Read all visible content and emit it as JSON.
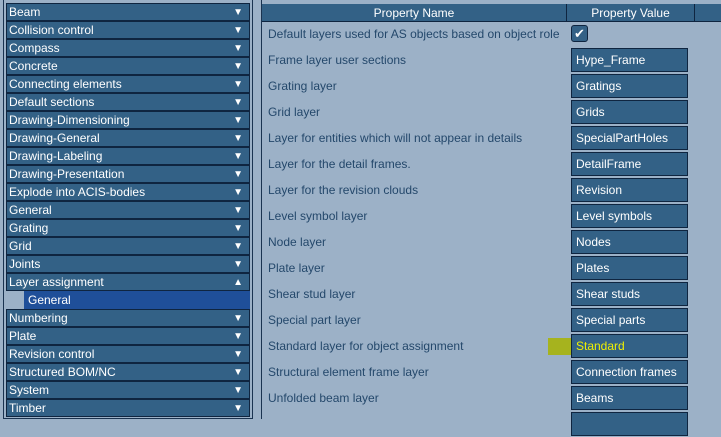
{
  "categories": [
    {
      "label": "Beam",
      "expanded": false
    },
    {
      "label": "Collision control",
      "expanded": false
    },
    {
      "label": "Compass",
      "expanded": false
    },
    {
      "label": "Concrete",
      "expanded": false
    },
    {
      "label": "Connecting elements",
      "expanded": false
    },
    {
      "label": "Default sections",
      "expanded": false
    },
    {
      "label": "Drawing-Dimensioning",
      "expanded": false
    },
    {
      "label": "Drawing-General",
      "expanded": false
    },
    {
      "label": "Drawing-Labeling",
      "expanded": false
    },
    {
      "label": "Drawing-Presentation",
      "expanded": false
    },
    {
      "label": "Explode into ACIS-bodies",
      "expanded": false
    },
    {
      "label": "General",
      "expanded": false
    },
    {
      "label": "Grating",
      "expanded": false
    },
    {
      "label": "Grid",
      "expanded": false
    },
    {
      "label": "Joints",
      "expanded": false
    },
    {
      "label": "Layer assignment",
      "expanded": true,
      "children": [
        "General"
      ]
    },
    {
      "label": "Numbering",
      "expanded": false
    },
    {
      "label": "Plate",
      "expanded": false
    },
    {
      "label": "Revision control",
      "expanded": false
    },
    {
      "label": "Structured BOM/NC",
      "expanded": false
    },
    {
      "label": "System",
      "expanded": false
    },
    {
      "label": "Timber",
      "expanded": false
    }
  ],
  "icons": {
    "collapsed": "▼",
    "expanded": "▲",
    "check": "✔"
  },
  "table": {
    "headers": [
      "Property Name",
      "Property Value"
    ],
    "rows": [
      {
        "name": "Default layers used for AS objects based on object role",
        "checked": true
      },
      {
        "name": "Frame layer user sections",
        "value": "Hype_Frame"
      },
      {
        "name": "Grating layer",
        "value": "Gratings"
      },
      {
        "name": "Grid layer",
        "value": "Grids"
      },
      {
        "name": "Layer for entities which will not appear in details",
        "value": "SpecialPartHoles"
      },
      {
        "name": "Layer for the detail frames.",
        "value": "DetailFrame"
      },
      {
        "name": "Layer for the revision clouds",
        "value": "Revision"
      },
      {
        "name": "Level symbol layer",
        "value": "Level symbols"
      },
      {
        "name": "Node layer",
        "value": "Nodes"
      },
      {
        "name": "Plate layer",
        "value": "Plates"
      },
      {
        "name": "Shear stud layer",
        "value": "Shear studs"
      },
      {
        "name": "Special part layer",
        "value": "Special parts"
      },
      {
        "name": "Standard layer for object assignment",
        "value": "Standard",
        "highlighted": true
      },
      {
        "name": "Structural element frame layer",
        "value": "Connection frames"
      },
      {
        "name": "Unfolded beam layer",
        "value": "Beams"
      }
    ]
  },
  "colors": {
    "highlight": "#a8b400",
    "highlight_text": "#f0f000",
    "selected": "#1f4f99",
    "row": "#336186"
  }
}
